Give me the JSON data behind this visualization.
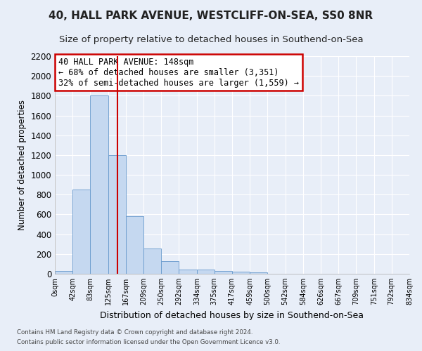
{
  "title1": "40, HALL PARK AVENUE, WESTCLIFF-ON-SEA, SS0 8NR",
  "title2": "Size of property relative to detached houses in Southend-on-Sea",
  "xlabel": "Distribution of detached houses by size in Southend-on-Sea",
  "ylabel": "Number of detached properties",
  "footnote1": "Contains HM Land Registry data © Crown copyright and database right 2024.",
  "footnote2": "Contains public sector information licensed under the Open Government Licence v3.0.",
  "annotation_line1": "40 HALL PARK AVENUE: 148sqm",
  "annotation_line2": "← 68% of detached houses are smaller (3,351)",
  "annotation_line3": "32% of semi-detached houses are larger (1,559) →",
  "bar_edges": [
    0,
    42,
    83,
    125,
    167,
    209,
    250,
    292,
    334,
    375,
    417,
    459,
    500,
    542,
    584,
    626,
    667,
    709,
    751,
    792,
    834
  ],
  "bar_heights": [
    25,
    850,
    1800,
    1200,
    580,
    255,
    130,
    45,
    45,
    30,
    20,
    15,
    0,
    0,
    0,
    0,
    0,
    0,
    0,
    0
  ],
  "bar_color": "#c5d8f0",
  "bar_edge_color": "#6699cc",
  "tick_labels": [
    "0sqm",
    "42sqm",
    "83sqm",
    "125sqm",
    "167sqm",
    "209sqm",
    "250sqm",
    "292sqm",
    "334sqm",
    "375sqm",
    "417sqm",
    "459sqm",
    "500sqm",
    "542sqm",
    "584sqm",
    "626sqm",
    "667sqm",
    "709sqm",
    "751sqm",
    "792sqm",
    "834sqm"
  ],
  "red_line_x": 148,
  "ylim": [
    0,
    2200
  ],
  "yticks": [
    0,
    200,
    400,
    600,
    800,
    1000,
    1200,
    1400,
    1600,
    1800,
    2000,
    2200
  ],
  "bg_color": "#e8eef8",
  "plot_bg_color": "#e8eef8",
  "annotation_box_color": "#ffffff",
  "annotation_box_edge": "#cc0000",
  "red_line_color": "#cc0000",
  "title_fontsize": 11,
  "subtitle_fontsize": 9.5,
  "grid_color": "#ffffff"
}
